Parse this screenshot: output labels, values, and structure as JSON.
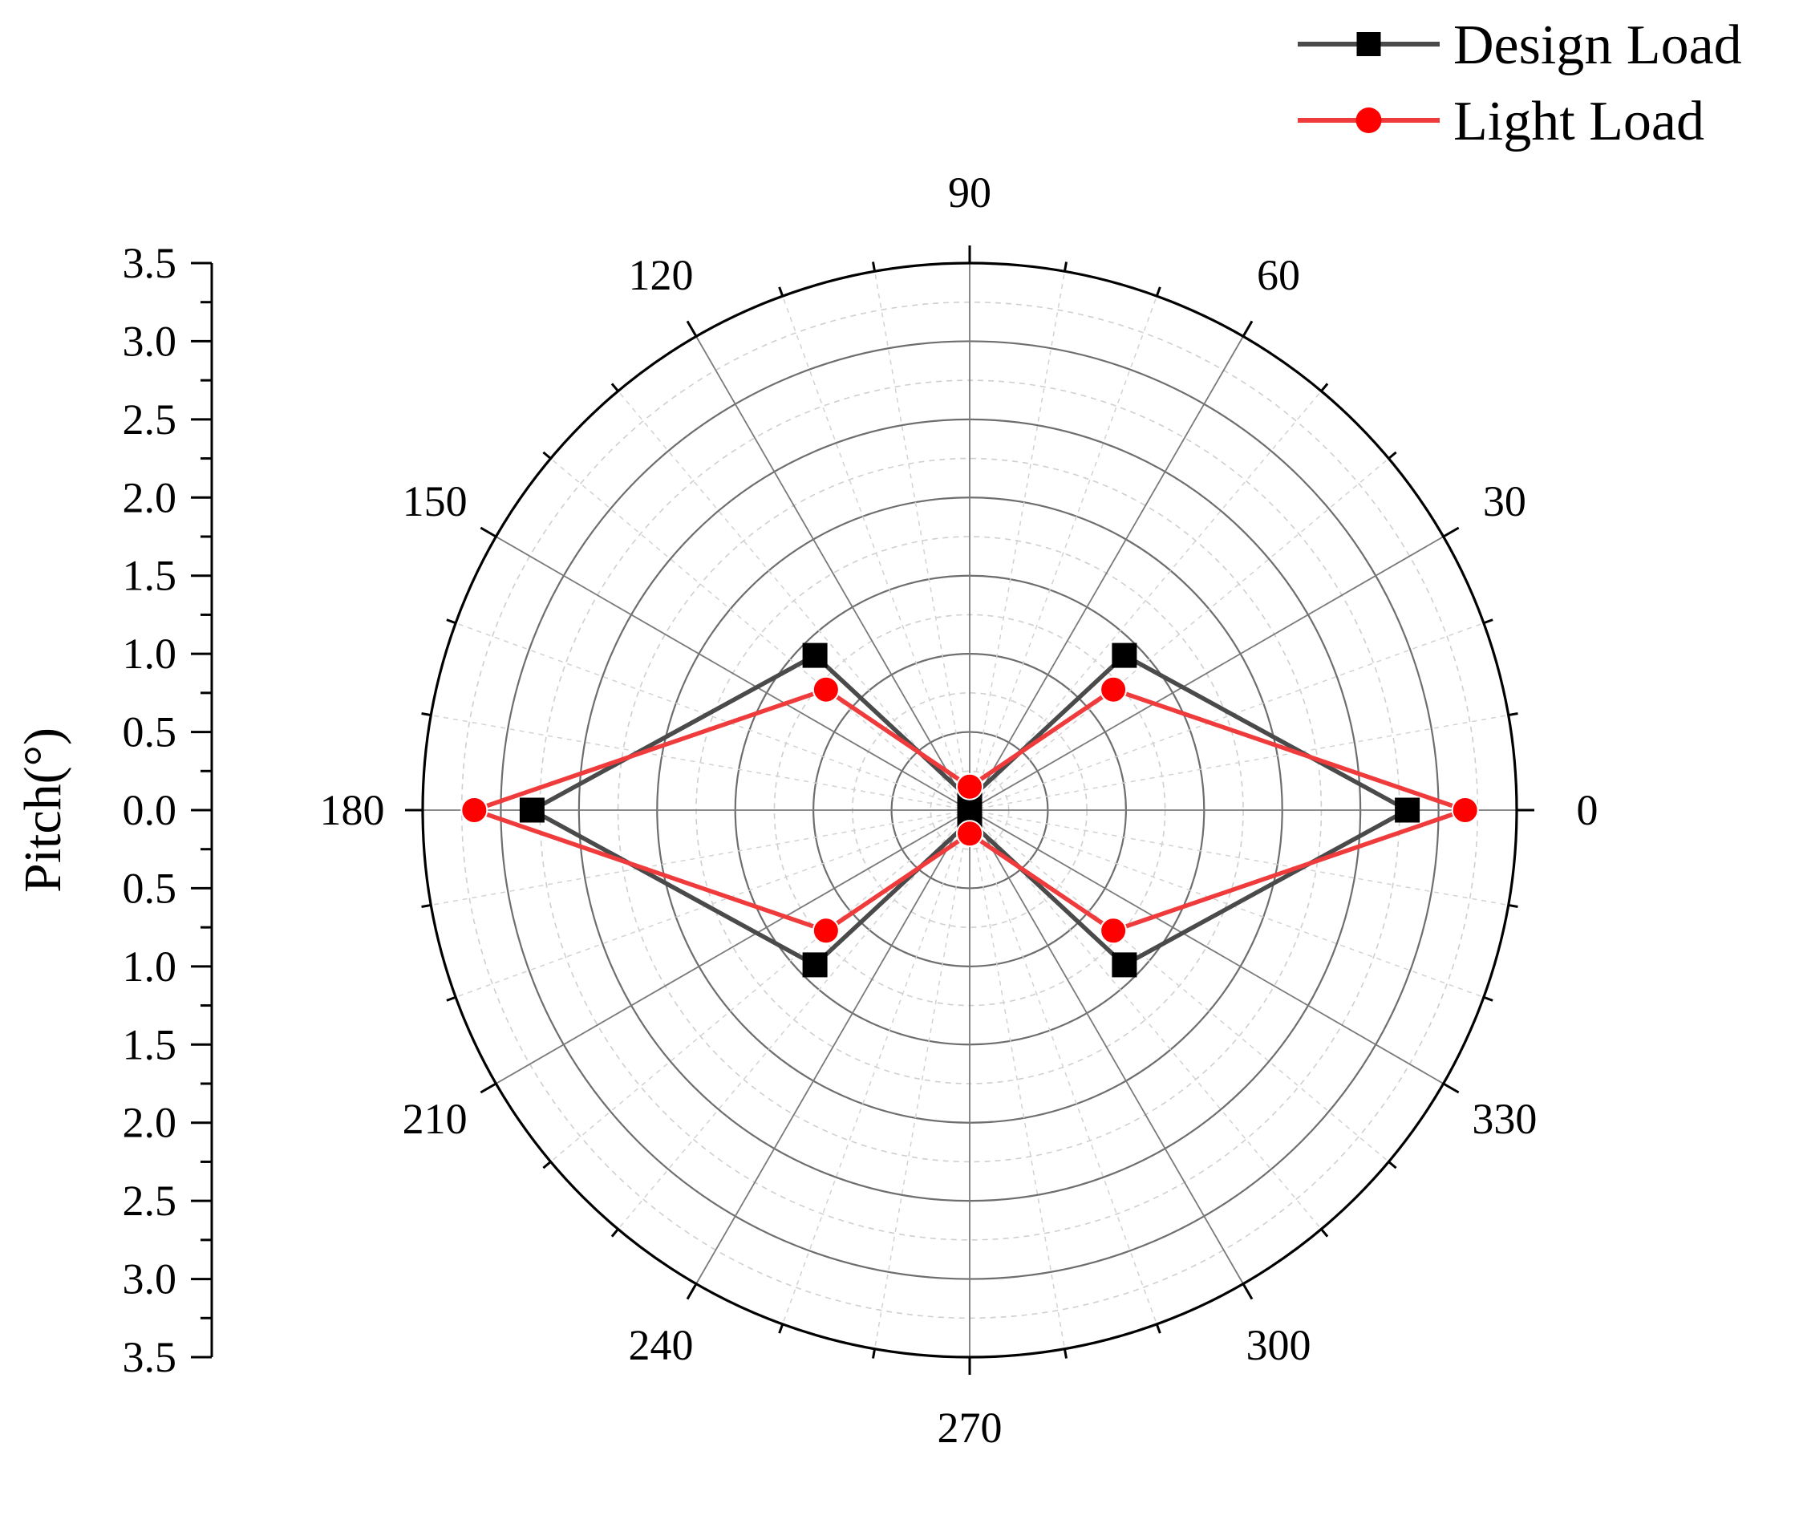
{
  "chart_data": {
    "type": "polar-line",
    "radial_axis": {
      "label": "Pitch(°)",
      "range": [
        0,
        3.5
      ],
      "major_step": 0.5,
      "minor_step": 0.25,
      "tick_labels_upper": [
        "3.5",
        "3.0",
        "2.5",
        "2.0",
        "1.5",
        "1.0",
        "0.5",
        "0.0"
      ],
      "tick_labels_lower": [
        "0.5",
        "1.0",
        "1.5",
        "2.0",
        "2.5",
        "3.0",
        "3.5"
      ]
    },
    "angular_axis": {
      "unit": "degrees",
      "labels": [
        "0",
        "30",
        "60",
        "90",
        "120",
        "150",
        "180",
        "210",
        "240",
        "270",
        "300",
        "330"
      ],
      "major_step": 30,
      "minor_step": 10
    },
    "grid": {
      "major_circles": true,
      "minor_circles_dashed": true,
      "spokes": true
    },
    "legend": {
      "position": "top-right"
    },
    "series": [
      {
        "name": "Design Load",
        "color": "#4a4a4a",
        "marker": "square",
        "marker_color": "#000000",
        "points": [
          {
            "theta": 0,
            "r": 2.8
          },
          {
            "theta": 45,
            "r": 1.4
          },
          {
            "theta": 90,
            "r": 0.07
          },
          {
            "theta": 135,
            "r": 1.4
          },
          {
            "theta": 180,
            "r": 2.8
          },
          {
            "theta": 225,
            "r": 1.4
          },
          {
            "theta": 270,
            "r": 0.07
          },
          {
            "theta": 315,
            "r": 1.4
          }
        ]
      },
      {
        "name": "Light Load",
        "color": "#ef3b3b",
        "marker": "circle",
        "marker_color": "#ff0000",
        "points": [
          {
            "theta": 0,
            "r": 3.17
          },
          {
            "theta": 40,
            "r": 1.2
          },
          {
            "theta": 90,
            "r": 0.15
          },
          {
            "theta": 140,
            "r": 1.2
          },
          {
            "theta": 180,
            "r": 3.17
          },
          {
            "theta": 220,
            "r": 1.2
          },
          {
            "theta": 270,
            "r": 0.15
          },
          {
            "theta": 320,
            "r": 1.2
          }
        ]
      }
    ]
  }
}
